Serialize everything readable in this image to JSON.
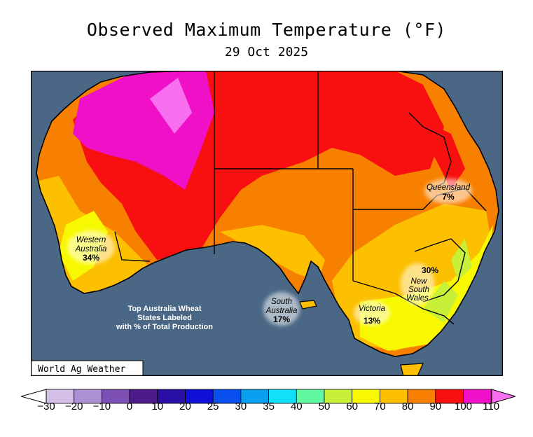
{
  "header": {
    "title": "Observed Maximum Temperature (°F)",
    "date": "29 Oct 2025"
  },
  "map": {
    "ocean_color": "#4a6785",
    "credit": "World Ag Weather",
    "note_lines": [
      "Top Australia Wheat",
      "States Labeled",
      "with % of Total Production"
    ],
    "states": [
      {
        "name_lines": [
          "Western",
          "Australia"
        ],
        "pct": "34%"
      },
      {
        "name_lines": [
          "South",
          "Australia"
        ],
        "pct": "17%"
      },
      {
        "name_lines": [
          "Victoria"
        ],
        "pct": "13%"
      },
      {
        "name_lines": [
          "New",
          "South",
          "Wales"
        ],
        "pct": "30%"
      },
      {
        "name_lines": [
          "Queensland"
        ],
        "pct": "7%"
      }
    ]
  },
  "legend": {
    "ticks": [
      "−30",
      "−20",
      "−10",
      "0",
      "10",
      "20",
      "25",
      "30",
      "35",
      "40",
      "50",
      "60",
      "70",
      "80",
      "90",
      "100",
      "110"
    ],
    "colors": [
      "#d3bfe8",
      "#ad8fd3",
      "#7d4fb5",
      "#4d1a8c",
      "#2a0fa6",
      "#1010d8",
      "#0a50f0",
      "#0aa0f0",
      "#10e0f8",
      "#60f8a0",
      "#c8f038",
      "#f8f800",
      "#fcc000",
      "#f88000",
      "#f81010",
      "#f010c8",
      "#f870f0"
    ]
  }
}
